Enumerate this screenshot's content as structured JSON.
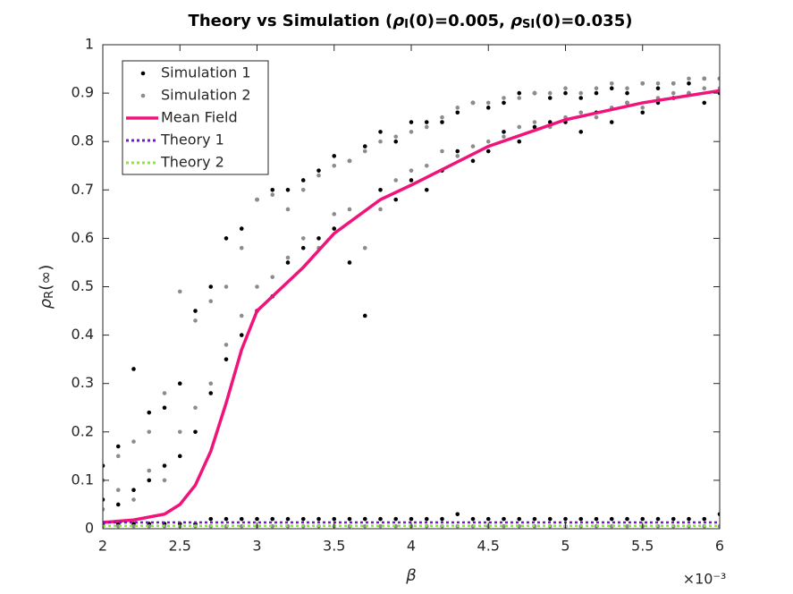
{
  "chart_data": {
    "type": "scatter",
    "title": [
      "Theory vs Simulation (",
      "ρ",
      "I",
      "(0)=0.005, ",
      "ρ",
      "SI",
      "(0)=0.035)"
    ],
    "xlabel": "β",
    "ylabel": [
      "ρ",
      "R",
      "(∞)"
    ],
    "x_multiplier": "×10⁻³",
    "xlim": [
      0.002,
      0.006
    ],
    "xticks": [
      {
        "value": 0.002,
        "label": "2"
      },
      {
        "value": 0.0025,
        "label": "2.5"
      },
      {
        "value": 0.003,
        "label": "3"
      },
      {
        "value": 0.0035,
        "label": "3.5"
      },
      {
        "value": 0.004,
        "label": "4"
      },
      {
        "value": 0.0045,
        "label": "4.5"
      },
      {
        "value": 0.005,
        "label": "5"
      },
      {
        "value": 0.0055,
        "label": "5.5"
      },
      {
        "value": 0.006,
        "label": "6"
      }
    ],
    "ylim": [
      0,
      1
    ],
    "yticks": [
      0,
      0.1,
      0.2,
      0.3,
      0.4,
      0.5,
      0.6,
      0.7,
      0.8,
      0.9,
      1
    ],
    "grid": false,
    "legend": "top-left",
    "series": [
      {
        "name": "Simulation 1",
        "kind": "points",
        "color": "#000000",
        "x": [
          0.002,
          0.0021,
          0.0022,
          0.0023,
          0.0024,
          0.0025,
          0.0026,
          0.0027,
          0.0028,
          0.0029,
          0.003,
          0.0031,
          0.0032,
          0.0033,
          0.0034,
          0.0035,
          0.0036,
          0.0037,
          0.0038,
          0.0039,
          0.004,
          0.0041,
          0.0042,
          0.0043,
          0.0044,
          0.0045,
          0.0046,
          0.0047,
          0.0048,
          0.0049,
          0.005,
          0.0051,
          0.0052,
          0.0053,
          0.0054,
          0.0055,
          0.0056,
          0.0057,
          0.0058,
          0.0059,
          0.006
        ],
        "values": [
          [
            0.01,
            0.06,
            0.13
          ],
          [
            0.01,
            0.05,
            0.17
          ],
          [
            0.01,
            0.08,
            0.33
          ],
          [
            0.01,
            0.1,
            0.24
          ],
          [
            0.01,
            0.13,
            0.25
          ],
          [
            0.01,
            0.15,
            0.3
          ],
          [
            0.01,
            0.2,
            0.45
          ],
          [
            0.02,
            0.28,
            0.5
          ],
          [
            0.02,
            0.35,
            0.6
          ],
          [
            0.02,
            0.4,
            0.62
          ],
          [
            0.02,
            0.45,
            0.68
          ],
          [
            0.02,
            0.48,
            0.7
          ],
          [
            0.02,
            0.55,
            0.7
          ],
          [
            0.02,
            0.58,
            0.72
          ],
          [
            0.02,
            0.6,
            0.74
          ],
          [
            0.02,
            0.62,
            0.77
          ],
          [
            0.02,
            0.55,
            0.76
          ],
          [
            0.02,
            0.44,
            0.79
          ],
          [
            0.02,
            0.7,
            0.82
          ],
          [
            0.02,
            0.68,
            0.8
          ],
          [
            0.02,
            0.72,
            0.84
          ],
          [
            0.02,
            0.7,
            0.84
          ],
          [
            0.02,
            0.74,
            0.84
          ],
          [
            0.03,
            0.78,
            0.86
          ],
          [
            0.02,
            0.76,
            0.88
          ],
          [
            0.02,
            0.78,
            0.87
          ],
          [
            0.02,
            0.82,
            0.88
          ],
          [
            0.02,
            0.8,
            0.9
          ],
          [
            0.02,
            0.83,
            0.9
          ],
          [
            0.02,
            0.84,
            0.89
          ],
          [
            0.02,
            0.84,
            0.9
          ],
          [
            0.02,
            0.82,
            0.89
          ],
          [
            0.02,
            0.86,
            0.9
          ],
          [
            0.02,
            0.84,
            0.91
          ],
          [
            0.02,
            0.88,
            0.9
          ],
          [
            0.02,
            0.86,
            0.92
          ],
          [
            0.02,
            0.88,
            0.91
          ],
          [
            0.02,
            0.89,
            0.92
          ],
          [
            0.02,
            0.9,
            0.92
          ],
          [
            0.02,
            0.88,
            0.93
          ],
          [
            0.03,
            0.9,
            0.93
          ]
        ]
      },
      {
        "name": "Simulation 2",
        "kind": "points",
        "color": "#8c8c8c",
        "x": [
          0.002,
          0.0021,
          0.0022,
          0.0023,
          0.0024,
          0.0025,
          0.0026,
          0.0027,
          0.0028,
          0.0029,
          0.003,
          0.0031,
          0.0032,
          0.0033,
          0.0034,
          0.0035,
          0.0036,
          0.0037,
          0.0038,
          0.0039,
          0.004,
          0.0041,
          0.0042,
          0.0043,
          0.0044,
          0.0045,
          0.0046,
          0.0047,
          0.0048,
          0.0049,
          0.005,
          0.0051,
          0.0052,
          0.0053,
          0.0054,
          0.0055,
          0.0056,
          0.0057,
          0.0058,
          0.0059,
          0.006
        ],
        "values": [
          [
            0.005,
            0.04,
            0.1
          ],
          [
            0.005,
            0.08,
            0.15
          ],
          [
            0.005,
            0.06,
            0.18
          ],
          [
            0.005,
            0.12,
            0.2
          ],
          [
            0.005,
            0.1,
            0.28
          ],
          [
            0.005,
            0.2,
            0.49
          ],
          [
            0.005,
            0.25,
            0.43
          ],
          [
            0.005,
            0.3,
            0.47
          ],
          [
            0.005,
            0.38,
            0.5
          ],
          [
            0.005,
            0.44,
            0.58
          ],
          [
            0.005,
            0.5,
            0.68
          ],
          [
            0.005,
            0.52,
            0.69
          ],
          [
            0.005,
            0.56,
            0.66
          ],
          [
            0.005,
            0.6,
            0.7
          ],
          [
            0.005,
            0.58,
            0.73
          ],
          [
            0.005,
            0.65,
            0.75
          ],
          [
            0.005,
            0.66,
            0.76
          ],
          [
            0.005,
            0.58,
            0.78
          ],
          [
            0.005,
            0.66,
            0.8
          ],
          [
            0.005,
            0.72,
            0.81
          ],
          [
            0.005,
            0.74,
            0.82
          ],
          [
            0.005,
            0.75,
            0.83
          ],
          [
            0.005,
            0.78,
            0.85
          ],
          [
            0.005,
            0.77,
            0.87
          ],
          [
            0.005,
            0.79,
            0.88
          ],
          [
            0.005,
            0.8,
            0.88
          ],
          [
            0.005,
            0.81,
            0.89
          ],
          [
            0.005,
            0.83,
            0.89
          ],
          [
            0.005,
            0.84,
            0.9
          ],
          [
            0.005,
            0.83,
            0.9
          ],
          [
            0.005,
            0.85,
            0.91
          ],
          [
            0.005,
            0.86,
            0.9
          ],
          [
            0.005,
            0.85,
            0.91
          ],
          [
            0.005,
            0.87,
            0.92
          ],
          [
            0.005,
            0.88,
            0.91
          ],
          [
            0.005,
            0.87,
            0.92
          ],
          [
            0.005,
            0.89,
            0.92
          ],
          [
            0.005,
            0.9,
            0.92
          ],
          [
            0.005,
            0.9,
            0.93
          ],
          [
            0.005,
            0.91,
            0.93
          ],
          [
            0.005,
            0.91,
            0.93
          ]
        ]
      },
      {
        "name": "Mean Field",
        "kind": "line",
        "color": "#f0147a",
        "x": [
          0.002,
          0.0022,
          0.0024,
          0.0025,
          0.0026,
          0.0027,
          0.0028,
          0.0029,
          0.003,
          0.0032,
          0.0033,
          0.0035,
          0.0038,
          0.004,
          0.0045,
          0.005,
          0.0055,
          0.006
        ],
        "values": [
          0.013,
          0.018,
          0.03,
          0.05,
          0.09,
          0.16,
          0.26,
          0.37,
          0.45,
          0.51,
          0.54,
          0.61,
          0.68,
          0.71,
          0.79,
          0.845,
          0.88,
          0.905
        ]
      },
      {
        "name": "Theory 1",
        "kind": "dotted",
        "color": "#7b10e8",
        "x": [
          0.002,
          0.006
        ],
        "values": [
          0.013,
          0.013
        ]
      },
      {
        "name": "Theory 2",
        "kind": "dotted",
        "color": "#80f020",
        "x": [
          0.002,
          0.006
        ],
        "values": [
          0.006,
          0.006
        ]
      }
    ]
  }
}
